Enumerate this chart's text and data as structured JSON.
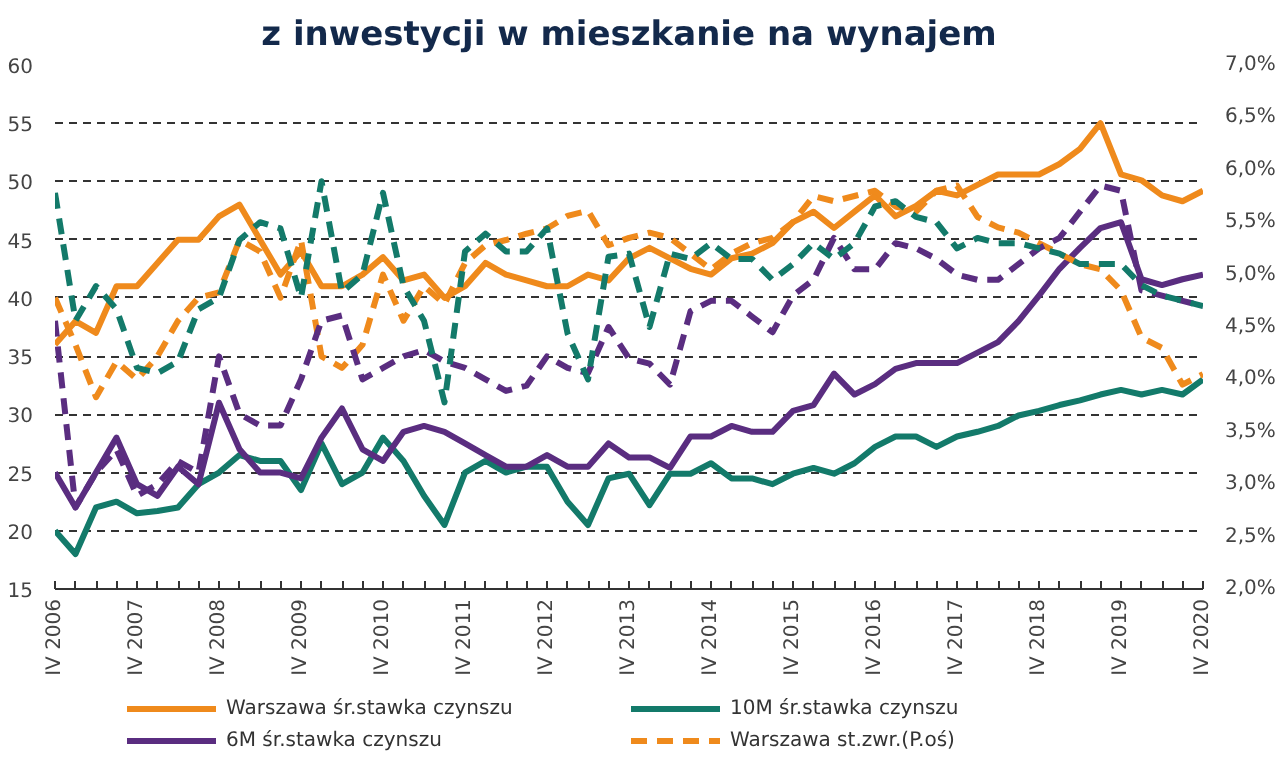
{
  "chart_data": {
    "type": "line",
    "title": "z inwestycji w mieszkanie na wynajem",
    "categories": [
      "IV 2006",
      null,
      null,
      null,
      "IV 2007",
      null,
      null,
      null,
      "IV 2008",
      null,
      null,
      null,
      "IV 2009",
      null,
      null,
      null,
      "IV 2010",
      null,
      null,
      null,
      "IV 2011",
      null,
      null,
      null,
      "IV 2012",
      null,
      null,
      null,
      "IV 2013",
      null,
      null,
      null,
      "IV 2014",
      null,
      null,
      null,
      "IV 2015",
      null,
      null,
      null,
      "IV 2016",
      null,
      null,
      null,
      "IV 2017",
      null,
      null,
      null,
      "IV 2018",
      null,
      null,
      null,
      "IV 2019",
      null,
      null,
      null,
      "IV 2020"
    ],
    "ylim": [
      15,
      60
    ],
    "yticks": [
      15,
      20,
      25,
      30,
      35,
      40,
      45,
      50,
      55,
      60
    ],
    "y2lim": [
      2.0,
      7.0
    ],
    "y2ticks": [
      {
        "value": 2.0,
        "label": "2,0%"
      },
      {
        "value": 2.5,
        "label": "2,5%"
      },
      {
        "value": 3.0,
        "label": "3,0%"
      },
      {
        "value": 3.5,
        "label": "3,5%"
      },
      {
        "value": 4.0,
        "label": "4,0%"
      },
      {
        "value": 4.5,
        "label": "4,5%"
      },
      {
        "value": 5.0,
        "label": "5,0%"
      },
      {
        "value": 5.5,
        "label": "5,5%"
      },
      {
        "value": 6.0,
        "label": "6,0%"
      },
      {
        "value": 6.5,
        "label": "6,5%"
      },
      {
        "value": 7.0,
        "label": "7,0%"
      }
    ],
    "grid": "y",
    "legend": "bottom",
    "marker": "none",
    "series": [
      {
        "name": "Warszawa śr.stawka czynszu",
        "color": "#ef8a1c",
        "line_style": "solid",
        "values": [
          36,
          38,
          37,
          41,
          41,
          43,
          45,
          45,
          47,
          48,
          45,
          42,
          44,
          41,
          41,
          42,
          43.5,
          41.5,
          42,
          40,
          41,
          43,
          42,
          41.5,
          41,
          41,
          42,
          41.5,
          43.4,
          44.3,
          43.4,
          42.5,
          42,
          43.4,
          43.8,
          44.7,
          46.5,
          47.4,
          46,
          47.4,
          48.8,
          47,
          47.9,
          49.2,
          48.8,
          49.7,
          50.6,
          50.6,
          50.6,
          51.5,
          52.8,
          55,
          50.6,
          50.1,
          48.8,
          48.3,
          49.2
        ]
      },
      {
        "name": "10M śr.stawka czynszu",
        "color": "#137a6a",
        "line_style": "solid",
        "values": [
          20,
          18,
          22,
          22.5,
          21.5,
          21.7,
          22,
          24,
          25,
          26.5,
          26,
          26,
          23.5,
          27.5,
          24,
          25,
          28,
          26,
          23,
          20.5,
          25,
          26,
          25,
          25.5,
          25.5,
          22.5,
          20.5,
          24.5,
          24.9,
          22.2,
          24.9,
          24.9,
          25.8,
          24.5,
          24.5,
          24,
          24.9,
          25.4,
          24.9,
          25.8,
          27.2,
          28.1,
          28.1,
          27.2,
          28.1,
          28.5,
          29,
          29.9,
          30.3,
          30.8,
          31.2,
          31.7,
          32.1,
          31.7,
          32.1,
          31.7,
          33
        ]
      },
      {
        "name": "6M śr.stawka czynszu",
        "color": "#5a2d80",
        "line_style": "solid",
        "values": [
          25,
          22,
          25,
          28,
          24,
          23,
          25.5,
          24,
          31,
          27,
          25,
          25,
          24.5,
          28,
          30.5,
          27,
          26,
          28.5,
          29,
          28.5,
          27.5,
          26.5,
          25.5,
          25.5,
          26.5,
          25.5,
          25.5,
          27.5,
          26.3,
          26.3,
          25.4,
          28.1,
          28.1,
          29,
          28.5,
          28.5,
          30.3,
          30.8,
          33.5,
          31.7,
          32.6,
          33.9,
          34.4,
          34.4,
          34.4,
          35.3,
          36.2,
          38,
          40.2,
          42.5,
          44.3,
          46,
          46.5,
          41.6,
          41.1,
          41.6,
          42
        ]
      },
      {
        "name": "Warszawa st.zwr.(P.oś)",
        "color": "#ef8a1c",
        "line_style": "dashed",
        "axis": "y2",
        "values": [
          4.78,
          4.33,
          3.83,
          4.17,
          4.0,
          4.22,
          4.56,
          4.78,
          4.83,
          5.33,
          5.22,
          4.78,
          5.33,
          4.22,
          4.11,
          4.33,
          5.0,
          4.56,
          4.89,
          4.72,
          5.11,
          5.28,
          5.33,
          5.39,
          5.44,
          5.56,
          5.61,
          5.28,
          5.35,
          5.4,
          5.35,
          5.2,
          5.05,
          5.2,
          5.3,
          5.35,
          5.5,
          5.75,
          5.7,
          5.75,
          5.8,
          5.65,
          5.6,
          5.8,
          5.85,
          5.55,
          5.45,
          5.4,
          5.3,
          5.2,
          5.1,
          5.05,
          4.85,
          4.4,
          4.3,
          3.95,
          4.05
        ]
      },
      {
        "color": "#5a2d80",
        "line_style": "dashed",
        "axis": "y2",
        "values": [
          4.56,
          2.78,
          3.11,
          3.33,
          2.89,
          3.0,
          3.22,
          3.11,
          4.22,
          3.67,
          3.56,
          3.56,
          4.0,
          4.56,
          4.61,
          4.0,
          4.11,
          4.22,
          4.28,
          4.17,
          4.11,
          4.0,
          3.89,
          3.94,
          4.22,
          4.11,
          4.06,
          4.5,
          4.2,
          4.15,
          3.95,
          4.65,
          4.75,
          4.75,
          4.6,
          4.45,
          4.8,
          4.95,
          5.35,
          5.05,
          5.05,
          5.3,
          5.25,
          5.15,
          5.0,
          4.95,
          4.95,
          5.1,
          5.25,
          5.35,
          5.6,
          5.85,
          5.8,
          4.85,
          4.8,
          4.75,
          4.7
        ]
      },
      {
        "color": "#137a6a",
        "line_style": "dashed",
        "axis": "y2",
        "values": [
          5.78,
          4.56,
          4.89,
          4.67,
          4.11,
          4.06,
          4.17,
          4.67,
          4.78,
          5.33,
          5.5,
          5.44,
          4.78,
          5.89,
          4.83,
          5.0,
          5.78,
          4.89,
          4.56,
          3.78,
          5.22,
          5.39,
          5.22,
          5.22,
          5.44,
          4.44,
          4.0,
          5.17,
          5.2,
          4.5,
          5.2,
          5.15,
          5.3,
          5.15,
          5.15,
          4.95,
          5.1,
          5.3,
          5.15,
          5.3,
          5.65,
          5.7,
          5.55,
          5.5,
          5.25,
          5.35,
          5.3,
          5.3,
          5.25,
          5.2,
          5.1,
          5.1,
          5.1,
          4.9,
          4.8,
          4.75,
          4.7
        ]
      }
    ]
  }
}
